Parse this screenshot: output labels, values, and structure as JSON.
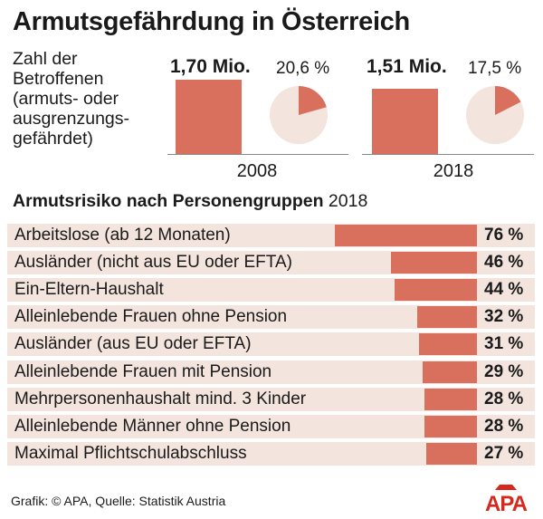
{
  "title": "Armutsgefährdung in Österreich",
  "description_lines": [
    "Zahl der",
    "Betroffenen",
    "(armuts- oder",
    "ausgrenzungs-",
    "gefährdet)"
  ],
  "comparison": [
    {
      "year": "2008",
      "value_label": "1,70 Mio.",
      "value_mio": 1.7,
      "pct_label": "20,6 %",
      "pct": 20.6
    },
    {
      "year": "2018",
      "value_label": "1,51 Mio.",
      "value_mio": 1.51,
      "pct_label": "17,5 %",
      "pct": 17.5
    }
  ],
  "subtitle_bold": "Armutsrisiko nach Personengruppen",
  "subtitle_year": "2018",
  "chart_data": [
    {
      "type": "bar",
      "title": "Armutsgefährdung in Österreich",
      "categories": [
        "2008",
        "2018"
      ],
      "series": [
        {
          "name": "Zahl der Betroffenen",
          "values": [
            1.7,
            1.51
          ],
          "labels": [
            "1,70 Mio.",
            "1,51 Mio."
          ]
        },
        {
          "name": "",
          "values": [
            20.6,
            17.5
          ],
          "labels": [
            "20,6 %",
            "17,5 %"
          ]
        }
      ]
    },
    {
      "type": "bar",
      "title": "Armutsrisiko nach Personengruppen 2018",
      "categories": [
        "Arbeitslose (ab 12 Monaten)",
        "Ausländer (nicht aus EU oder EFTA)",
        "Ein-Eltern-Haushalt",
        "Alleinlebende Frauen ohne Pension",
        "Ausländer (aus EU oder EFTA)",
        "Alleinlebende Frauen mit Pension",
        "Mehrpersonenhaushalt mind. 3 Kinder",
        "Alleinlebende Männer ohne Pension",
        "Maximal Pflichtschulabschluss"
      ],
      "values": [
        76,
        46,
        44,
        32,
        31,
        29,
        28,
        28,
        27
      ],
      "value_labels": [
        "76 %",
        "46 %",
        "44 %",
        "32 %",
        "31 %",
        "29 %",
        "28 %",
        "28 %",
        "27 %"
      ]
    }
  ],
  "colors": {
    "bar": "#d9705e",
    "row_background": "#f3e4dd",
    "pie_rest": "#f3e4dd",
    "logo": "#d6281c"
  },
  "source": "Grafik: © APA, Quelle: Statistik Austria",
  "logo_text": "APA"
}
